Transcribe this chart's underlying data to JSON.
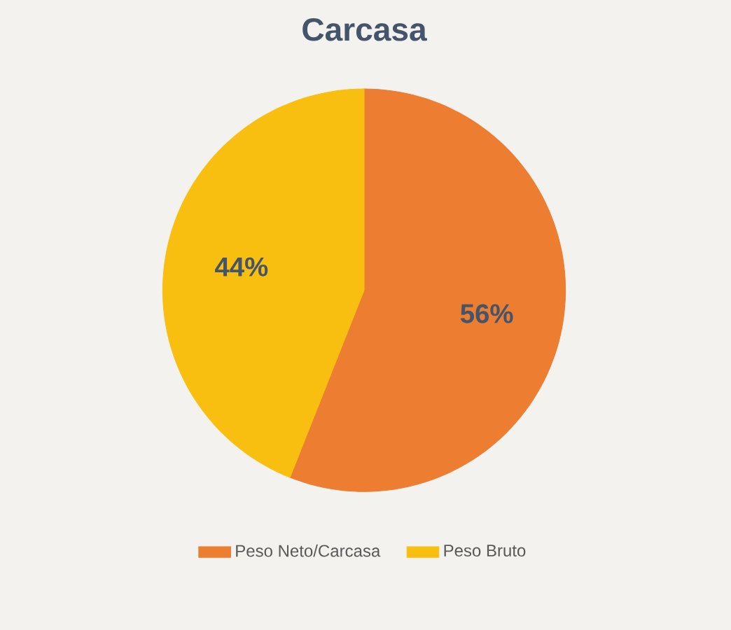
{
  "chart_data": {
    "type": "pie",
    "title": "Carcasa",
    "categories": [
      "Peso Neto/Carcasa",
      "Peso Bruto"
    ],
    "values": [
      56,
      44
    ],
    "colors": [
      "#ed7d31",
      "#f9bf10"
    ],
    "value_labels": [
      "56%",
      "44%"
    ],
    "legend": "bottom"
  }
}
